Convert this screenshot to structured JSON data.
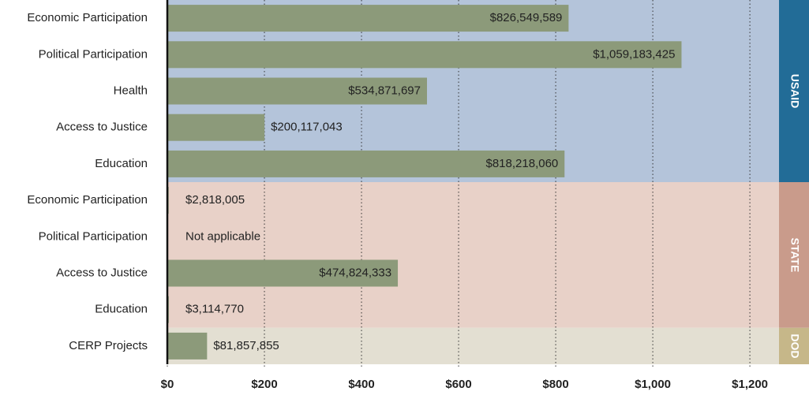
{
  "chart_data": {
    "type": "grouped-hbar",
    "bar_color": "#8c9a7a",
    "groups": [
      {
        "name": "USAID",
        "color": "#b4c4da",
        "strip_color": "#226c97",
        "categories": [
          "Economic Participation",
          "Political Participation",
          "Health",
          "Access to Justice",
          "Education"
        ],
        "values": [
          826.549589,
          1059.183425,
          534.871697,
          200.117043,
          818.21806
        ],
        "value_labels": [
          "$826,549,589",
          "$1,059,183,425",
          "$534,871,697",
          "$200,117,043",
          "$818,218,060"
        ]
      },
      {
        "name": "STATE",
        "color": "#e8d1c8",
        "strip_color": "#c99b8b",
        "categories": [
          "Economic Participation",
          "Political Participation",
          "Access to Justice",
          "Education"
        ],
        "values": [
          2.818005,
          null,
          474.824333,
          3.11477
        ],
        "value_labels": [
          "$2,818,005",
          "Not applicable",
          "$474,824,333",
          "$3,114,770"
        ]
      },
      {
        "name": "DOD",
        "color": "#e3dfd2",
        "strip_color": "#c6b789",
        "categories": [
          "CERP Projects"
        ],
        "values": [
          81.857855
        ],
        "value_labels": [
          "$81,857,855"
        ]
      }
    ],
    "xlim": [
      0,
      1260
    ],
    "xticks": [
      {
        "value": 0,
        "label": "$0"
      },
      {
        "value": 200,
        "label": "$200"
      },
      {
        "value": 400,
        "label": "$400"
      },
      {
        "value": 600,
        "label": "$600"
      },
      {
        "value": 800,
        "label": "$800"
      },
      {
        "value": 1000,
        "label": "$1,000"
      },
      {
        "value": 1200,
        "label": "$1,200"
      }
    ],
    "grid": true
  }
}
